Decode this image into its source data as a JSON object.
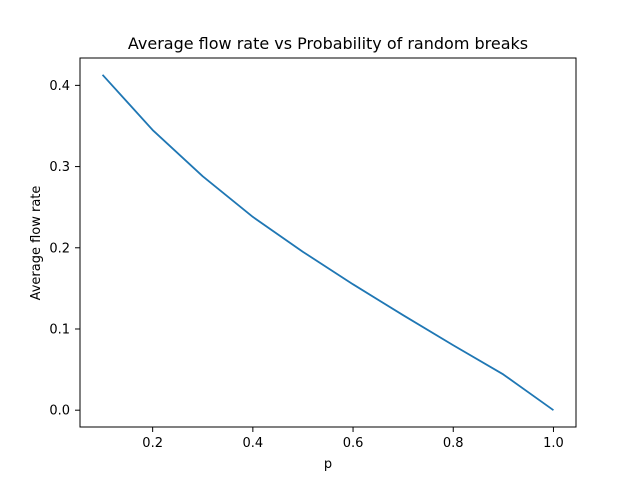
{
  "chart_data": {
    "type": "line",
    "title": "Average flow rate vs Probability of random breaks",
    "xlabel": "p",
    "ylabel": "Average flow rate",
    "xlim": [
      0.055,
      1.045
    ],
    "ylim": [
      -0.0207,
      0.4337
    ],
    "x_ticks": [
      0.2,
      0.4,
      0.6,
      0.8,
      1.0
    ],
    "x_tick_labels": [
      "0.2",
      "0.4",
      "0.6",
      "0.8",
      "1.0"
    ],
    "y_ticks": [
      0.0,
      0.1,
      0.2,
      0.3,
      0.4
    ],
    "y_tick_labels": [
      "0.0",
      "0.1",
      "0.2",
      "0.3",
      "0.4"
    ],
    "grid": false,
    "legend": "none",
    "series": [
      {
        "color": "#1f77b4",
        "x": [
          0.1,
          0.2,
          0.3,
          0.4,
          0.5,
          0.6,
          0.7,
          0.8,
          0.9,
          1.0
        ],
        "y": [
          0.413,
          0.345,
          0.288,
          0.238,
          0.195,
          0.155,
          0.117,
          0.08,
          0.044,
          0.0
        ]
      }
    ]
  }
}
